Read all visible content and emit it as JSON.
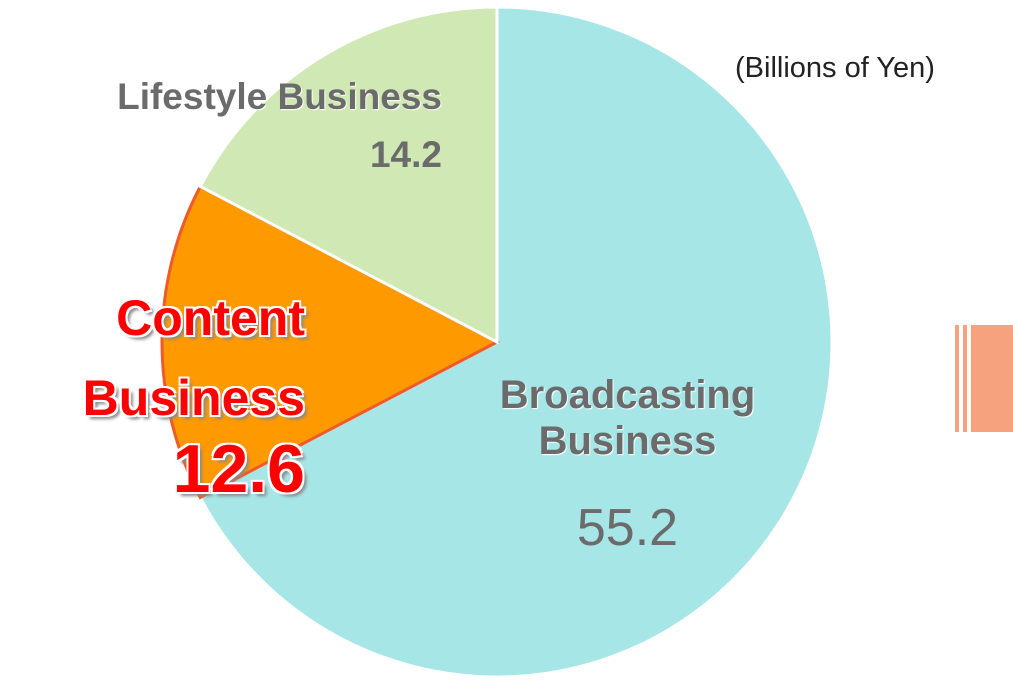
{
  "chart_data": {
    "type": "pie",
    "subtitle": "(Billions of Yen)",
    "categories": [
      "Broadcasting Business",
      "Content Business",
      "Lifestyle Business"
    ],
    "values": [
      55.2,
      12.6,
      14.2
    ],
    "colors": [
      "#a6e6e6",
      "#ff9900",
      "#cfe8b4"
    ]
  }
}
